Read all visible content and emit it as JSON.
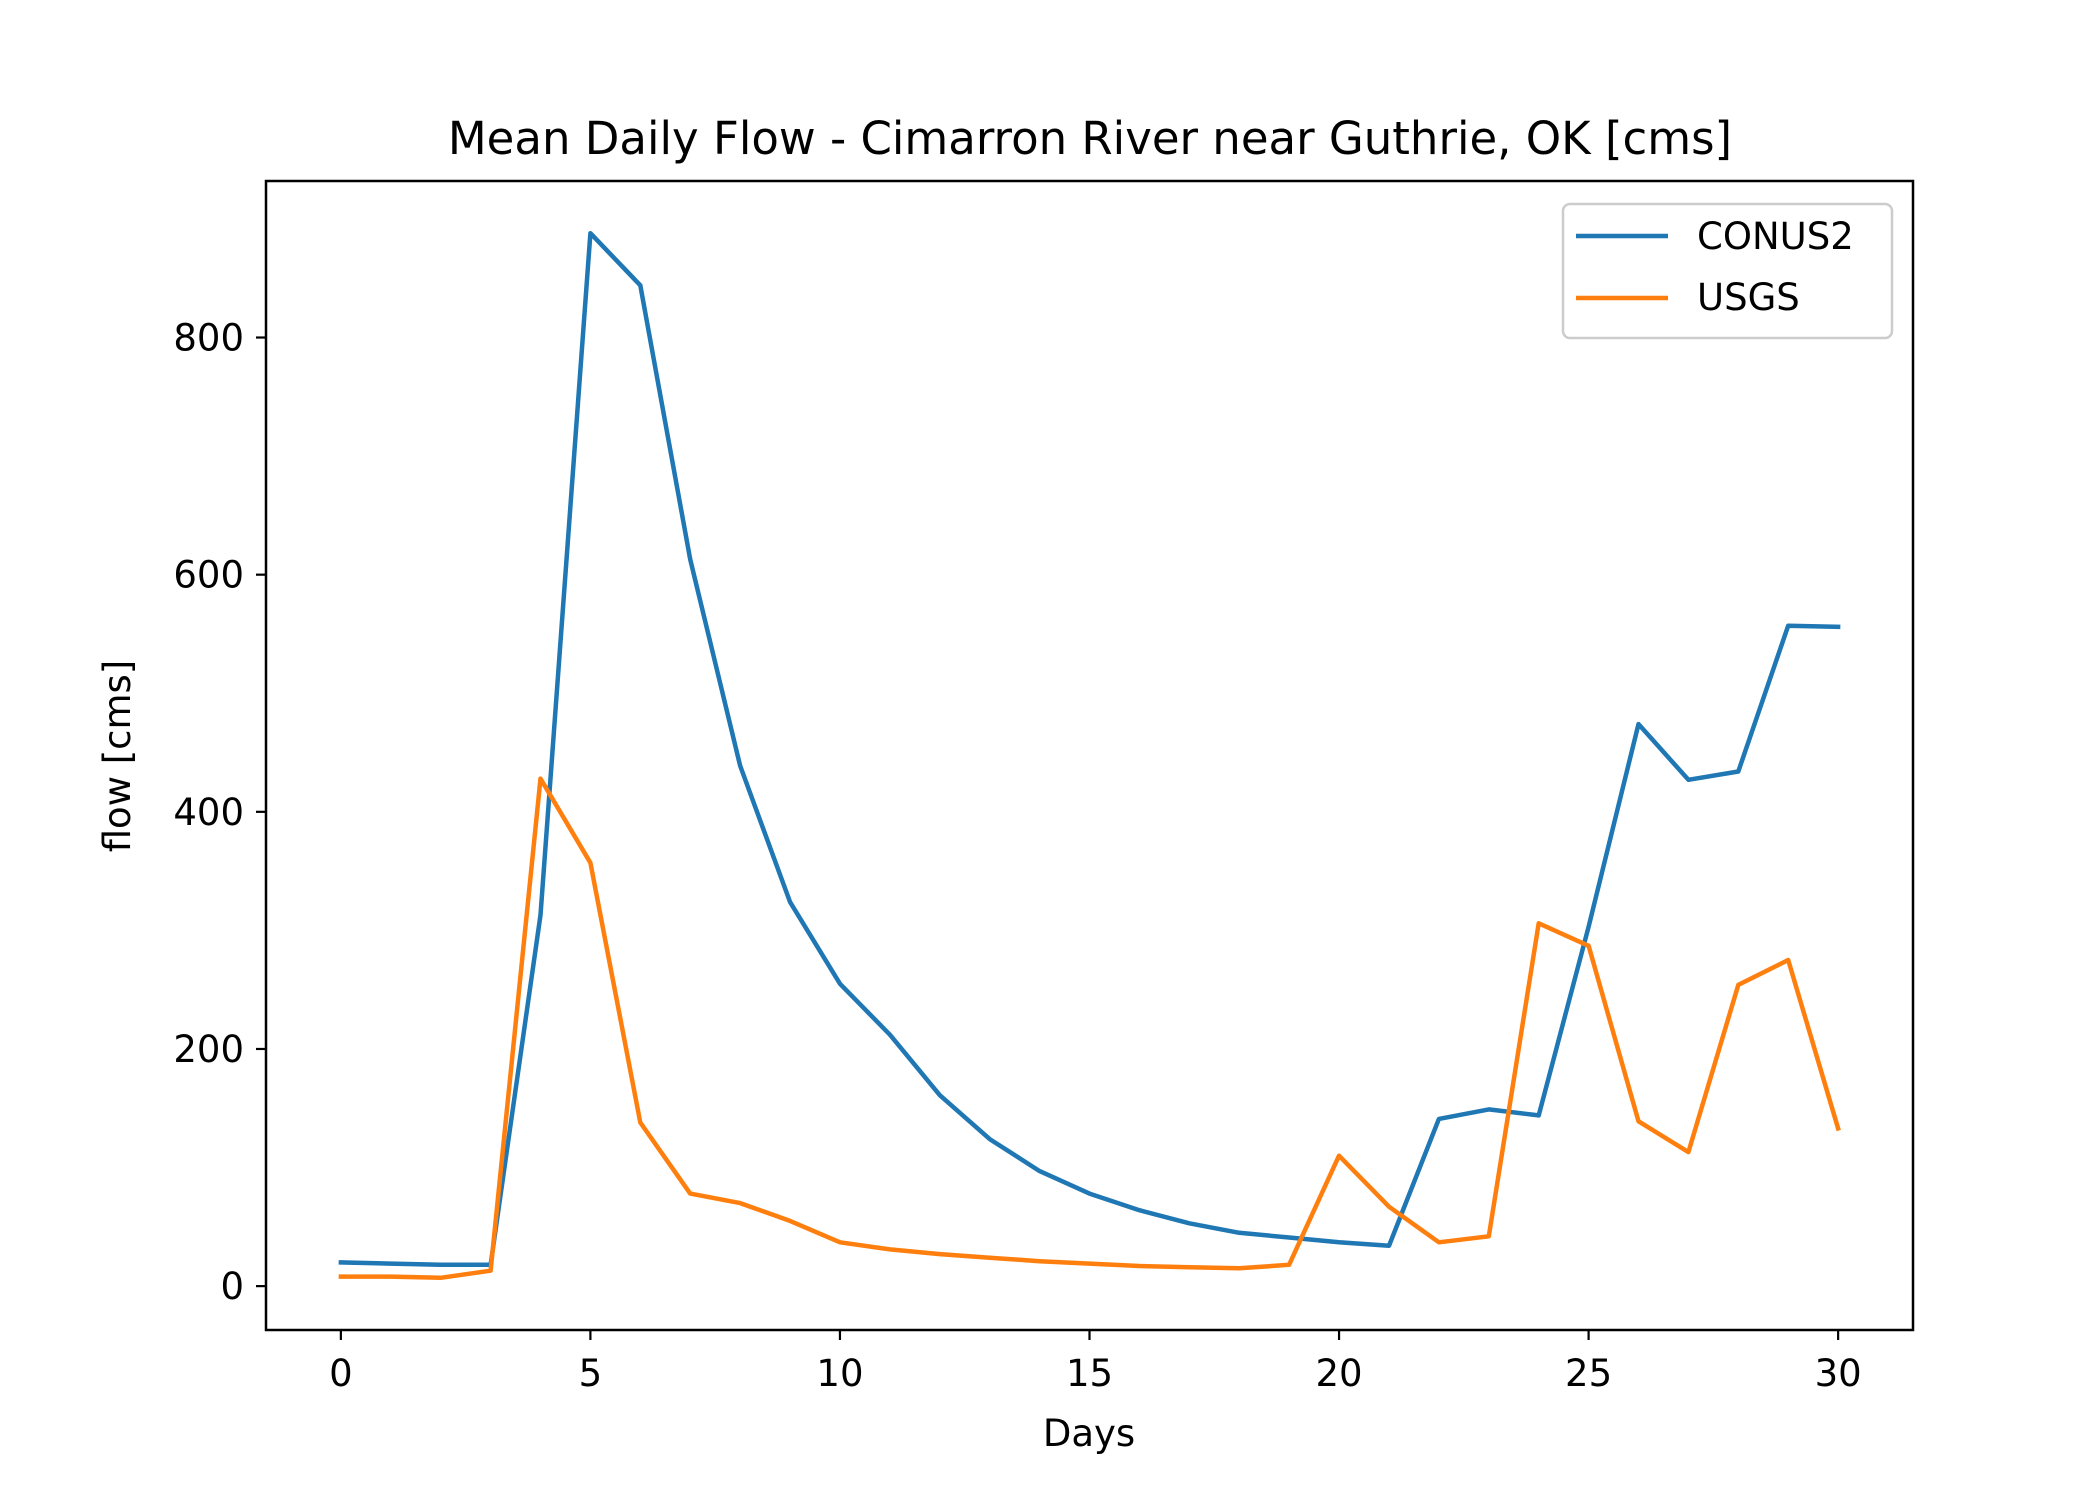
{
  "chart_data": {
    "type": "line",
    "title": "Mean Daily Flow - Cimarron River near Guthrie, OK [cms]",
    "xlabel": "Days",
    "ylabel": "flow [cms]",
    "xlim": [
      -1.5,
      31.5
    ],
    "ylim": [
      -37,
      932
    ],
    "xticks": [
      0,
      5,
      10,
      15,
      20,
      25,
      30
    ],
    "yticks": [
      0,
      200,
      400,
      600,
      800
    ],
    "xtick_labels": [
      "0",
      "5",
      "10",
      "15",
      "20",
      "25",
      "30"
    ],
    "ytick_labels": [
      "0",
      "200",
      "400",
      "600",
      "800"
    ],
    "grid": false,
    "legend_position": "upper right",
    "x": [
      0,
      1,
      2,
      3,
      4,
      5,
      6,
      7,
      8,
      9,
      10,
      11,
      12,
      13,
      14,
      15,
      16,
      17,
      18,
      19,
      20,
      21,
      22,
      23,
      24,
      25,
      26,
      27,
      28,
      29,
      30
    ],
    "series": [
      {
        "name": "CONUS2",
        "color": "#1f77b4",
        "values": [
          20,
          19,
          18,
          18,
          313,
          888,
          844,
          613,
          439,
          324,
          255,
          212,
          161,
          124,
          97,
          78,
          64,
          53,
          45,
          41,
          37,
          34,
          141,
          149,
          144,
          303,
          474,
          427,
          434,
          557,
          556
        ]
      },
      {
        "name": "USGS",
        "color": "#ff7f0e",
        "values": [
          8,
          8,
          7,
          13,
          428,
          357,
          138,
          78,
          70,
          55,
          37,
          31,
          27,
          24,
          21,
          19,
          17,
          16,
          15,
          18,
          110,
          67,
          37,
          42,
          306,
          287,
          139,
          113,
          254,
          275,
          133
        ]
      }
    ]
  }
}
